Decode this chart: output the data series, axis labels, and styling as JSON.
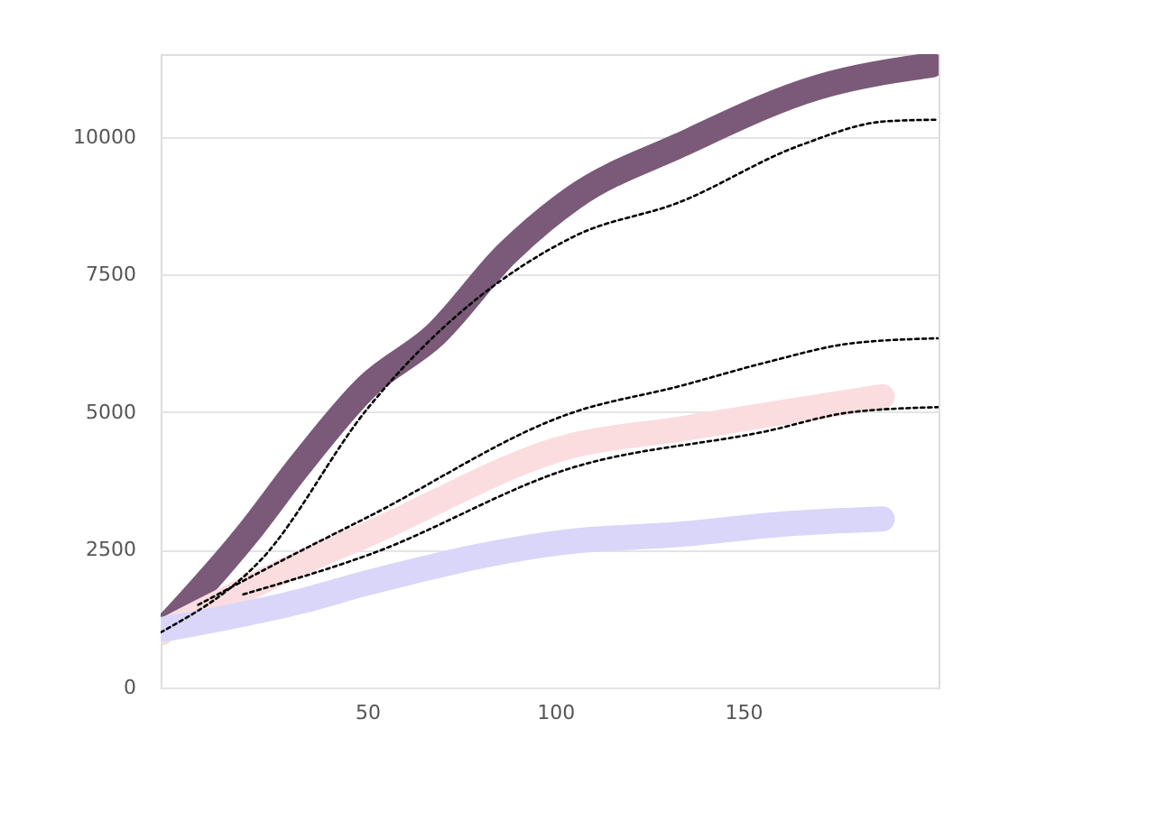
{
  "chart_data": {
    "type": "line",
    "xlim": [
      -5,
      202
    ],
    "xticks": [
      50,
      100,
      150
    ],
    "ylim": [
      0,
      11500
    ],
    "yticks": [
      0,
      2500,
      5000,
      7500,
      10000
    ],
    "grid": "y",
    "line_style": "solid",
    "marker": "none",
    "series": [
      {
        "color": "#7a5a78",
        "x": [
          -5,
          18,
          32,
          50,
          68,
          87,
          105,
          133,
          170,
          200
        ],
        "values": [
          1000,
          2780,
          4030,
          5470,
          6400,
          7870,
          8900,
          9840,
          10900,
          11300
        ]
      },
      {
        "color": "#000000",
        "line_style": "dotted",
        "x": [
          -5,
          22,
          50,
          105,
          133,
          165,
          188,
          202
        ],
        "values": [
          1000,
          2340,
          5060,
          8190,
          8810,
          9840,
          10280,
          10310
        ]
      },
      {
        "color": "#000000",
        "line_style": "dotted",
        "x": [
          5,
          32,
          50,
          105,
          133,
          156,
          179,
          202
        ],
        "values": [
          1500,
          2470,
          3090,
          5000,
          5470,
          5900,
          6250,
          6340
        ]
      },
      {
        "color": "#fbdde0",
        "x": [
          -5,
          32,
          50,
          105,
          133,
          161,
          187
        ],
        "values": [
          1000,
          2250,
          2780,
          4400,
          4690,
          5000,
          5280
        ]
      },
      {
        "color": "#000000",
        "line_style": "dotted",
        "x": [
          17,
          50,
          105,
          156,
          179,
          202
        ],
        "values": [
          1690,
          2400,
          4000,
          4650,
          5000,
          5090
        ]
      },
      {
        "color": "#d9d6fa",
        "x": [
          -4,
          32,
          50,
          105,
          133,
          161,
          187
        ],
        "values": [
          1060,
          1560,
          1900,
          2660,
          2780,
          2970,
          3060
        ]
      }
    ]
  }
}
